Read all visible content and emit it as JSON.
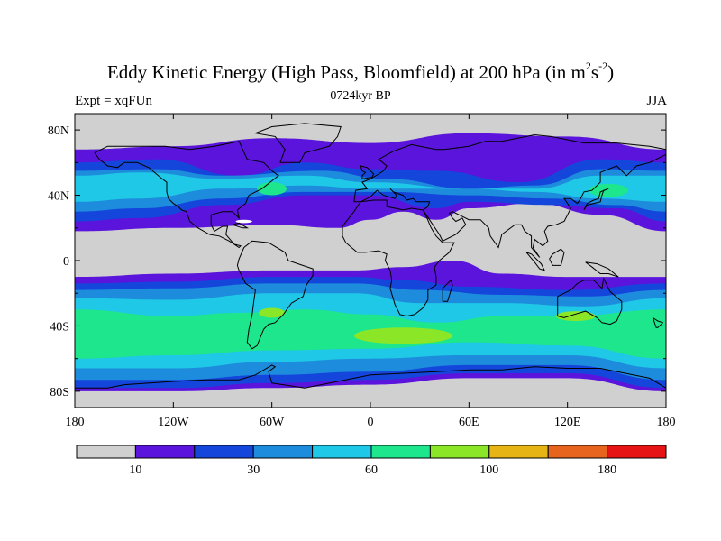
{
  "title": {
    "main": "Eddy Kinetic Energy (High Pass, Bloomfield) at 200 hPa (in m",
    "sup1": "2",
    "mid": "s",
    "sup2": "-2",
    "end": ")"
  },
  "subtitle": "0724kyr BP",
  "left_label": "Expt = xqFUn",
  "right_label": "JJA",
  "chart_data": {
    "type": "map-contour",
    "variable": "Eddy kinetic energy (high pass, Bloomfield) at 200 hPa",
    "units": "m2s-2",
    "season": "JJA",
    "period": "0724kyr BP",
    "lon_range": [
      -180,
      180
    ],
    "lat_range": [
      -90,
      90
    ],
    "y_ticks": [
      {
        "lat": 80,
        "label": "80N"
      },
      {
        "lat": 40,
        "label": "40N"
      },
      {
        "lat": 0,
        "label": "0"
      },
      {
        "lat": -40,
        "label": "40S"
      },
      {
        "lat": -80,
        "label": "80S"
      }
    ],
    "x_ticks": [
      {
        "lon": -180,
        "label": "180"
      },
      {
        "lon": -120,
        "label": "120W"
      },
      {
        "lon": -60,
        "label": "60W"
      },
      {
        "lon": 0,
        "label": "0"
      },
      {
        "lon": 60,
        "label": "60E"
      },
      {
        "lon": 120,
        "label": "120E"
      },
      {
        "lon": 180,
        "label": "180"
      }
    ],
    "colorbar": {
      "colors": [
        "#d0d0d0",
        "#5b14dc",
        "#1446dc",
        "#1e8cdc",
        "#1ec8e6",
        "#1ee68c",
        "#8ce628",
        "#e6b414",
        "#e6641e",
        "#e61414"
      ],
      "labels": [
        {
          "boundary": 1,
          "text": "10"
        },
        {
          "boundary": 3,
          "text": "30"
        },
        {
          "boundary": 5,
          "text": "60"
        },
        {
          "boundary": 7,
          "text": "100"
        },
        {
          "boundary": 9,
          "text": "180"
        }
      ]
    },
    "bands": [
      {
        "level": 1,
        "top": [
          [
            -180,
            68
          ],
          [
            -120,
            70
          ],
          [
            -60,
            75
          ],
          [
            0,
            72
          ],
          [
            60,
            78
          ],
          [
            120,
            76
          ],
          [
            180,
            68
          ]
        ],
        "bottom": [
          [
            -180,
            18
          ],
          [
            -120,
            20
          ],
          [
            -60,
            22
          ],
          [
            -20,
            20
          ],
          [
            0,
            25
          ],
          [
            20,
            30
          ],
          [
            40,
            25
          ],
          [
            60,
            32
          ],
          [
            100,
            35
          ],
          [
            140,
            28
          ],
          [
            180,
            18
          ]
        ]
      },
      {
        "level": 2,
        "top": [
          [
            -180,
            60
          ],
          [
            -130,
            62
          ],
          [
            -80,
            52
          ],
          [
            -40,
            60
          ],
          [
            0,
            56
          ],
          [
            40,
            55
          ],
          [
            90,
            48
          ],
          [
            140,
            62
          ],
          [
            180,
            60
          ]
        ],
        "bottom": [
          [
            -180,
            24
          ],
          [
            -140,
            26
          ],
          [
            -90,
            34
          ],
          [
            -40,
            40
          ],
          [
            0,
            40
          ],
          [
            40,
            32
          ],
          [
            60,
            36
          ],
          [
            110,
            34
          ],
          [
            150,
            32
          ],
          [
            180,
            24
          ]
        ]
      },
      {
        "level": 3,
        "top": [
          [
            -180,
            55
          ],
          [
            -130,
            56
          ],
          [
            -90,
            52
          ],
          [
            -30,
            55
          ],
          [
            10,
            50
          ],
          [
            60,
            44
          ],
          [
            100,
            46
          ],
          [
            140,
            56
          ],
          [
            180,
            55
          ]
        ],
        "bottom": [
          [
            -180,
            30
          ],
          [
            -140,
            32
          ],
          [
            -90,
            38
          ],
          [
            -40,
            42
          ],
          [
            10,
            42
          ],
          [
            60,
            40
          ],
          [
            110,
            38
          ],
          [
            150,
            34
          ],
          [
            180,
            30
          ]
        ]
      },
      {
        "level": 4,
        "top": [
          [
            -180,
            52
          ],
          [
            -140,
            54
          ],
          [
            -90,
            50
          ],
          [
            -40,
            52
          ],
          [
            0,
            48
          ],
          [
            60,
            44
          ],
          [
            100,
            44
          ],
          [
            140,
            52
          ],
          [
            180,
            52
          ]
        ],
        "bottom": [
          [
            -180,
            36
          ],
          [
            -140,
            38
          ],
          [
            -90,
            44
          ],
          [
            -40,
            46
          ],
          [
            0,
            44
          ],
          [
            60,
            44
          ],
          [
            100,
            42
          ],
          [
            140,
            38
          ],
          [
            180,
            36
          ]
        ]
      },
      {
        "level": 1,
        "top": [
          [
            -180,
            -10
          ],
          [
            -120,
            -8
          ],
          [
            -60,
            -6
          ],
          [
            -10,
            -6
          ],
          [
            20,
            -4
          ],
          [
            50,
            0
          ],
          [
            80,
            -8
          ],
          [
            120,
            -10
          ],
          [
            180,
            -10
          ]
        ],
        "bottom": [
          [
            -180,
            -80
          ],
          [
            -120,
            -80
          ],
          [
            -60,
            -78
          ],
          [
            0,
            -76
          ],
          [
            60,
            -72
          ],
          [
            120,
            -72
          ],
          [
            180,
            -80
          ]
        ]
      },
      {
        "level": 2,
        "top": [
          [
            -180,
            -14
          ],
          [
            -120,
            -13
          ],
          [
            -60,
            -10
          ],
          [
            -10,
            -10
          ],
          [
            20,
            -12
          ],
          [
            60,
            -16
          ],
          [
            120,
            -18
          ],
          [
            180,
            -14
          ]
        ],
        "bottom": [
          [
            -180,
            -78
          ],
          [
            -120,
            -78
          ],
          [
            -60,
            -75
          ],
          [
            0,
            -73
          ],
          [
            60,
            -69
          ],
          [
            120,
            -69
          ],
          [
            180,
            -78
          ]
        ]
      },
      {
        "level": 3,
        "top": [
          [
            -180,
            -18
          ],
          [
            -120,
            -17
          ],
          [
            -60,
            -14
          ],
          [
            -10,
            -14
          ],
          [
            30,
            -18
          ],
          [
            80,
            -21
          ],
          [
            130,
            -22
          ],
          [
            180,
            -18
          ]
        ],
        "bottom": [
          [
            -180,
            -73
          ],
          [
            -120,
            -73
          ],
          [
            -60,
            -70
          ],
          [
            0,
            -68
          ],
          [
            60,
            -64
          ],
          [
            120,
            -64
          ],
          [
            180,
            -73
          ]
        ]
      },
      {
        "level": 4,
        "top": [
          [
            -180,
            -23
          ],
          [
            -120,
            -24
          ],
          [
            -60,
            -20
          ],
          [
            -10,
            -20
          ],
          [
            30,
            -26
          ],
          [
            80,
            -26
          ],
          [
            130,
            -28
          ],
          [
            180,
            -23
          ]
        ],
        "bottom": [
          [
            -180,
            -66
          ],
          [
            -120,
            -66
          ],
          [
            -60,
            -62
          ],
          [
            0,
            -60
          ],
          [
            60,
            -58
          ],
          [
            120,
            -58
          ],
          [
            180,
            -66
          ]
        ]
      },
      {
        "level": 5,
        "top": [
          [
            -180,
            -30
          ],
          [
            -120,
            -34
          ],
          [
            -80,
            -32
          ],
          [
            -40,
            -30
          ],
          [
            0,
            -33
          ],
          [
            40,
            -38
          ],
          [
            80,
            -34
          ],
          [
            120,
            -34
          ],
          [
            180,
            -30
          ]
        ],
        "bottom": [
          [
            -180,
            -60
          ],
          [
            -120,
            -58
          ],
          [
            -60,
            -55
          ],
          [
            0,
            -54
          ],
          [
            60,
            -50
          ],
          [
            120,
            -52
          ],
          [
            180,
            -60
          ]
        ]
      }
    ],
    "blobs": [
      {
        "level": 6,
        "lon": -60,
        "lat": -32,
        "rx": 8,
        "ry": 3
      },
      {
        "level": 6,
        "lon": 20,
        "lat": -46,
        "rx": 30,
        "ry": 5
      },
      {
        "level": 6,
        "lon": 125,
        "lat": -34,
        "rx": 12,
        "ry": 3
      },
      {
        "level": 5,
        "lon": -60,
        "lat": 44,
        "rx": 9,
        "ry": 4
      },
      {
        "level": 5,
        "lon": 145,
        "lat": 43,
        "rx": 12,
        "ry": 4
      },
      {
        "level": 0,
        "lon": -77,
        "lat": 24,
        "rx": 5,
        "ry": 1
      }
    ]
  }
}
